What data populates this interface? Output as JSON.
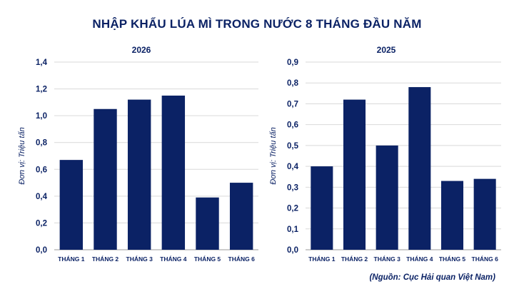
{
  "title": "NHẬP KHẨU LÚA MÌ TRONG NƯỚC 8 THÁNG ĐẦU NĂM",
  "source": "(Nguồn: Cục Hải quan Việt Nam)",
  "colors": {
    "bar": "#0b2265",
    "grid": "#d9d9d9",
    "text": "#0b2265"
  },
  "chart_data": [
    {
      "type": "bar",
      "title": "2026",
      "ylabel": "Đơn vị: Triệu tấn",
      "categories": [
        "THÁNG 1",
        "THÁNG 2",
        "THÁNG 3",
        "THÁNG 4",
        "THÁNG 5",
        "THÁNG 6"
      ],
      "values": [
        0.67,
        1.05,
        1.12,
        1.15,
        0.39,
        0.5
      ],
      "ylim": [
        0,
        1.4
      ],
      "yticks": [
        "0,0",
        "0,2",
        "0,4",
        "0,6",
        "0,8",
        "1,0",
        "1,2",
        "1,4"
      ],
      "grid": true
    },
    {
      "type": "bar",
      "title": "2025",
      "ylabel": "Đơn vị: Triệu tấn",
      "categories": [
        "THÁNG 1",
        "THÁNG 2",
        "THÁNG 3",
        "THÁNG 4",
        "THÁNG 5",
        "THÁNG 6"
      ],
      "values": [
        0.4,
        0.72,
        0.5,
        0.78,
        0.33,
        0.34
      ],
      "ylim": [
        0,
        0.9
      ],
      "yticks": [
        "0,0",
        "0,1",
        "0,2",
        "0,3",
        "0,4",
        "0,5",
        "0,6",
        "0,7",
        "0,8",
        "0,9"
      ],
      "grid": true
    }
  ]
}
